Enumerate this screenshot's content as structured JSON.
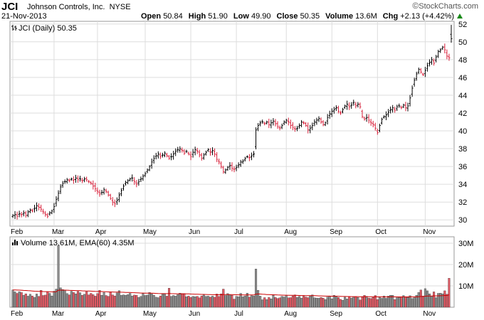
{
  "header": {
    "ticker": "JCI",
    "company": "Johnson Controls, Inc.",
    "exchange": "NYSE",
    "date": "21-Nov-2013",
    "watermark": "StockCharts.com",
    "open_label": "Open",
    "open": "50.84",
    "high_label": "High",
    "high": "51.90",
    "low_label": "Low",
    "low": "49.90",
    "close_label": "Close",
    "close": "50.35",
    "volume_label": "Volume",
    "volume": "13.6M",
    "chg_label": "Chg",
    "chg": "+2.13 (+4.42%)"
  },
  "price_panel": {
    "legend": "JCI (Daily) 50.35"
  },
  "volume_panel": {
    "legend": "Volume 13.61M, EMA(60) 4.35M"
  },
  "colors": {
    "up": "#000000",
    "down": "#d8203a",
    "vol_up": "#8c8c8c",
    "vol_down": "#e05a64",
    "ema": "#cc0000",
    "grid": "#dddddd",
    "positive": "#1a8a1a"
  },
  "chart_data": [
    {
      "type": "ohlc",
      "x_label": "",
      "y_label": "",
      "x_ticks": [
        "Feb",
        "Mar",
        "Apr",
        "May",
        "Jun",
        "Jul",
        "Aug",
        "Sep",
        "Oct",
        "Nov"
      ],
      "y_ticks": [
        30,
        32,
        34,
        36,
        38,
        40,
        42,
        44,
        46,
        48,
        50,
        52
      ],
      "ylim": [
        29.3,
        52.3
      ],
      "grid": true,
      "legend": "top-left",
      "closes": [
        30.5,
        30.6,
        30.4,
        30.7,
        30.6,
        30.8,
        30.5,
        30.9,
        31.1,
        31.0,
        31.3,
        31.6,
        31.4,
        31.2,
        30.9,
        30.6,
        30.4,
        30.8,
        31.0,
        31.5,
        32.3,
        33.0,
        33.7,
        34.1,
        34.3,
        34.5,
        34.4,
        34.6,
        34.5,
        34.7,
        34.5,
        34.6,
        34.4,
        34.6,
        34.5,
        34.3,
        34.1,
        33.8,
        33.5,
        33.2,
        32.9,
        33.1,
        33.4,
        33.2,
        32.8,
        32.4,
        32.0,
        31.8,
        32.2,
        32.8,
        33.3,
        33.8,
        34.2,
        34.4,
        34.6,
        34.7,
        34.3,
        34.0,
        34.3,
        34.6,
        34.9,
        35.2,
        35.6,
        36.0,
        36.5,
        36.9,
        37.2,
        37.4,
        37.1,
        37.3,
        37.5,
        37.2,
        36.9,
        37.1,
        37.4,
        37.7,
        37.9,
        38.0,
        37.8,
        37.5,
        37.7,
        37.4,
        37.1,
        37.6,
        37.9,
        37.7,
        37.3,
        36.9,
        37.3,
        37.6,
        37.9,
        37.6,
        37.8,
        37.4,
        36.8,
        36.5,
        36.0,
        35.4,
        35.6,
        35.9,
        36.1,
        35.8,
        35.7,
        35.9,
        36.2,
        36.5,
        36.6,
        36.9,
        37.1,
        37.0,
        37.2,
        37.4,
        40.1,
        40.6,
        40.9,
        41.0,
        40.8,
        41.0,
        40.7,
        40.9,
        41.1,
        40.8,
        40.5,
        40.3,
        40.6,
        41.0,
        41.2,
        41.0,
        40.6,
        40.4,
        40.2,
        40.3,
        40.6,
        41.0,
        40.9,
        40.6,
        40.1,
        40.3,
        40.6,
        41.0,
        41.2,
        41.4,
        41.0,
        40.7,
        40.9,
        41.5,
        41.9,
        42.2,
        42.4,
        42.6,
        42.2,
        42.0,
        42.4,
        42.8,
        43.0,
        42.7,
        42.9,
        43.2,
        42.8,
        43.0,
        42.7,
        41.6,
        41.3,
        41.5,
        41.2,
        40.9,
        40.7,
        40.3,
        39.8,
        40.6,
        41.3,
        41.6,
        41.8,
        42.1,
        42.4,
        42.6,
        42.3,
        42.7,
        42.8,
        42.6,
        42.9,
        42.6,
        42.8,
        43.7,
        44.8,
        45.7,
        46.4,
        46.9,
        46.6,
        46.3,
        46.8,
        47.3,
        47.7,
        48.0,
        47.6,
        48.3,
        48.9,
        49.1,
        49.4,
        49.1,
        48.4,
        48.2,
        50.35
      ],
      "volume_ema60_millions": 4.35
    },
    {
      "type": "bar",
      "title": "Volume",
      "ylim": [
        0,
        33
      ],
      "y_ticks": [
        "10M",
        "20M",
        "30M"
      ],
      "volumes_millions": [
        8.1,
        7.2,
        6.5,
        7.3,
        6.9,
        5.6,
        6.3,
        5.2,
        6.1,
        5.3,
        4.6,
        6.2,
        5.1,
        7.9,
        5.5,
        5.7,
        7.3,
        6.5,
        5.3,
        7.5,
        8.5,
        29.0,
        9.1,
        8.3,
        7.9,
        6.4,
        5.8,
        7.5,
        6.9,
        6.3,
        7.4,
        6.8,
        5.6,
        6.1,
        7.3,
        5.8,
        6.5,
        5.9,
        5.2,
        6.4,
        7.9,
        5.6,
        6.9,
        5.5,
        5.1,
        7.2,
        5.8,
        5.3,
        6.7,
        7.8,
        5.6,
        5.8,
        5.6,
        5.9,
        6.5,
        5.3,
        5.7,
        5.6,
        4.6,
        5.1,
        6.4,
        5.5,
        5.7,
        6.9,
        6.3,
        5.6,
        4.7,
        4.5,
        5.3,
        6.2,
        6.4,
        5.2,
        8.9,
        5.1,
        5.5,
        5.2,
        5.9,
        6.6,
        6.4,
        6.4,
        4.9,
        5.3,
        4.6,
        5.1,
        4.9,
        5.1,
        4.4,
        5.3,
        5.7,
        5.1,
        5.2,
        4.8,
        5.2,
        4.7,
        6.2,
        5.1,
        6.3,
        8.5,
        5.5,
        6.4,
        5.9,
        5.6,
        3.8,
        5.1,
        4.9,
        6.5,
        4.9,
        5.3,
        6.6,
        4.8,
        5.4,
        5.3,
        17.9,
        7.9,
        5.2,
        3.5,
        4.5,
        3.6,
        4.6,
        3.9,
        5.6,
        4.6,
        4.1,
        4.4,
        5.1,
        4.8,
        5.6,
        4.4,
        4.5,
        5.3,
        5.8,
        4.6,
        5.1,
        4.3,
        5.2,
        4.8,
        4.5,
        5.3,
        5.8,
        4.4,
        4.3,
        4.2,
        4.6,
        4.3,
        3.6,
        4.8,
        5.2,
        3.9,
        5.6,
        5.2,
        4.6,
        3.7,
        3.3,
        4.7,
        3.9,
        5.1,
        4.3,
        4.9,
        5.0,
        4.6,
        3.4,
        4.8,
        5.6,
        5.1,
        4.3,
        4.1,
        4.6,
        5.5,
        3.6,
        4.8,
        4.2,
        5.3,
        4.2,
        5.2,
        5.6,
        5.6,
        3.6,
        4.5,
        4.6,
        4.8,
        5.5,
        4.9,
        4.6,
        5.4,
        4.1,
        4.5,
        5.6,
        6.9,
        8.1,
        5.2,
        8.7,
        7.7,
        6.3,
        5.2,
        7.2,
        4.5,
        6.5,
        6.6,
        6.3,
        7.7,
        6.1,
        13.61
      ]
    }
  ]
}
